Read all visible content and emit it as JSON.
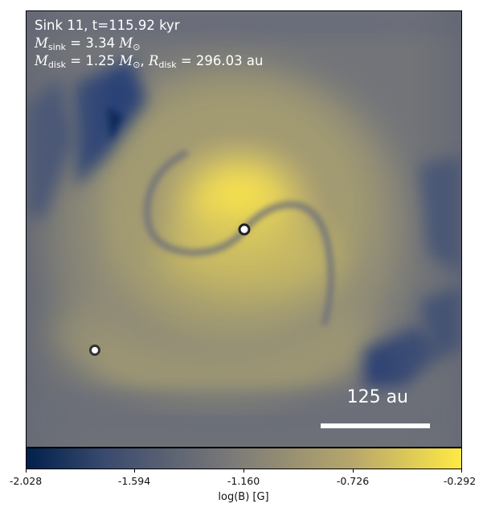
{
  "annotation": {
    "line1": "Sink 11, t=115.92 kyr",
    "msink_label": "M",
    "msink_sub": "sink",
    "msink_value": "= 3.34",
    "msun_sym": "M",
    "msun_sub": "⊙",
    "mdisk_label": "M",
    "mdisk_sub": "disk",
    "mdisk_value": "= 1.25",
    "rdisk_label": "R",
    "rdisk_sub": "disk",
    "rdisk_value": "= 296.03 au"
  },
  "scalebar": {
    "label": "125 au"
  },
  "colorbar": {
    "label": "log(B) [G]",
    "ticks": [
      "-2.028",
      "-1.594",
      "-1.160",
      "-0.726",
      "-0.292"
    ],
    "colormap": "cividis",
    "colors": {
      "low": "#00204c",
      "mid": "#7c7b78",
      "high": "#ffe945"
    }
  }
}
